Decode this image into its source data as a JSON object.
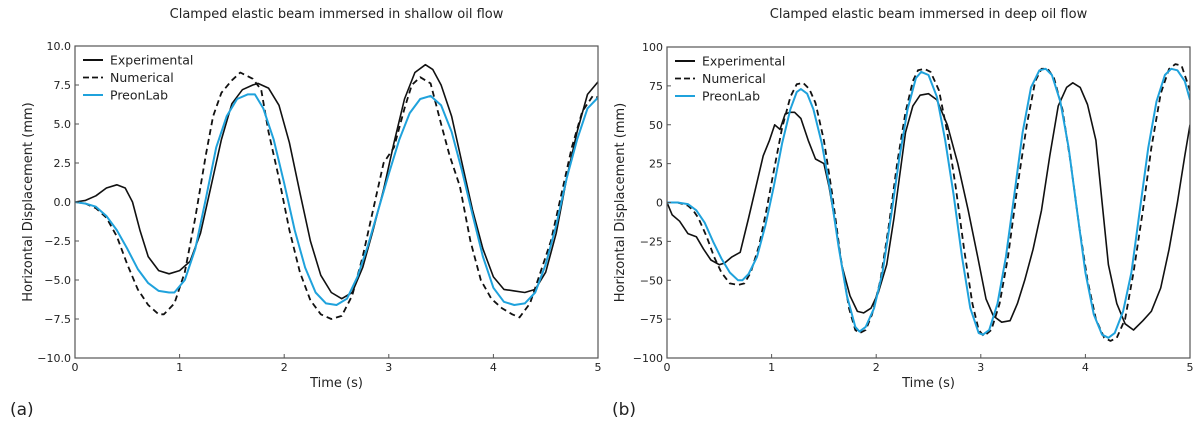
{
  "chart_data": [
    {
      "type": "line",
      "panel_label": "(a)",
      "title": "Clamped elastic beam immersed in shallow oil flow",
      "xlabel": "Time (s)",
      "ylabel": "Horizontal Displacement (mm)",
      "xlim": [
        0,
        5
      ],
      "ylim": [
        -10,
        10
      ],
      "xticks": [
        "0",
        "1",
        "2",
        "3",
        "4",
        "5"
      ],
      "yticks": [
        "10.0",
        "7.5",
        "5.0",
        "2.5",
        "0.0",
        "−2.5",
        "−5.0",
        "−7.5",
        "−10.0"
      ],
      "ytick_values": [
        10,
        7.5,
        5,
        2.5,
        0,
        -2.5,
        -5,
        -7.5,
        -10
      ],
      "xtick_values": [
        0,
        1,
        2,
        3,
        4,
        5
      ],
      "grid": false,
      "legend_position": "top-left",
      "series": [
        {
          "name": "Experimental",
          "color": "#111111",
          "style": "solid",
          "x": [
            0,
            0.1,
            0.2,
            0.3,
            0.4,
            0.48,
            0.55,
            0.62,
            0.7,
            0.8,
            0.9,
            1.0,
            1.1,
            1.2,
            1.3,
            1.4,
            1.5,
            1.6,
            1.7,
            1.75,
            1.85,
            1.95,
            2.05,
            2.15,
            2.25,
            2.35,
            2.45,
            2.55,
            2.65,
            2.75,
            2.85,
            2.95,
            3.05,
            3.15,
            3.25,
            3.35,
            3.42,
            3.5,
            3.6,
            3.7,
            3.8,
            3.9,
            4.0,
            4.1,
            4.2,
            4.3,
            4.4,
            4.5,
            4.6,
            4.7,
            4.8,
            4.9,
            5.0
          ],
          "y": [
            0,
            0.1,
            0.4,
            0.9,
            1.1,
            0.9,
            0.0,
            -1.8,
            -3.5,
            -4.4,
            -4.6,
            -4.4,
            -3.8,
            -2.0,
            1.0,
            4.0,
            6.3,
            7.2,
            7.5,
            7.6,
            7.3,
            6.2,
            3.8,
            0.6,
            -2.5,
            -4.7,
            -5.8,
            -6.2,
            -5.8,
            -4.2,
            -1.8,
            0.8,
            3.8,
            6.6,
            8.3,
            8.8,
            8.5,
            7.5,
            5.5,
            2.5,
            -0.5,
            -3.0,
            -4.8,
            -5.6,
            -5.7,
            -5.8,
            -5.6,
            -4.5,
            -2.0,
            1.5,
            4.5,
            6.9,
            7.7
          ]
        },
        {
          "name": "Numerical",
          "color": "#111111",
          "style": "dashed",
          "x": [
            0,
            0.1,
            0.2,
            0.3,
            0.4,
            0.5,
            0.6,
            0.7,
            0.8,
            0.85,
            0.95,
            1.05,
            1.15,
            1.25,
            1.32,
            1.4,
            1.5,
            1.58,
            1.7,
            1.78,
            1.85,
            1.95,
            2.05,
            2.15,
            2.25,
            2.35,
            2.45,
            2.55,
            2.65,
            2.75,
            2.85,
            2.95,
            3.05,
            3.15,
            3.22,
            3.3,
            3.4,
            3.5,
            3.58,
            3.68,
            3.78,
            3.88,
            3.98,
            4.08,
            4.18,
            4.25,
            4.35,
            4.45,
            4.55,
            4.65,
            4.75,
            4.85,
            4.95,
            5.0
          ],
          "y": [
            0,
            -0.1,
            -0.4,
            -1.0,
            -2.2,
            -4.0,
            -5.6,
            -6.6,
            -7.2,
            -7.2,
            -6.5,
            -4.5,
            -1.0,
            3.0,
            5.5,
            7.0,
            7.8,
            8.3,
            7.9,
            7.2,
            4.5,
            1.5,
            -1.8,
            -4.5,
            -6.3,
            -7.2,
            -7.5,
            -7.3,
            -6.0,
            -3.5,
            -0.5,
            2.5,
            3.5,
            6.0,
            7.5,
            8.0,
            7.6,
            5.0,
            3.0,
            1.0,
            -2.5,
            -5.0,
            -6.2,
            -6.8,
            -7.2,
            -7.4,
            -6.5,
            -4.5,
            -2.5,
            0.5,
            3.5,
            5.8,
            6.8,
            6.7
          ]
        },
        {
          "name": "PreonLab",
          "color": "#1fa2dc",
          "style": "solid",
          "x": [
            0,
            0.1,
            0.2,
            0.3,
            0.4,
            0.5,
            0.6,
            0.7,
            0.8,
            0.9,
            0.95,
            1.05,
            1.15,
            1.25,
            1.35,
            1.45,
            1.55,
            1.65,
            1.72,
            1.8,
            1.9,
            2.0,
            2.1,
            2.2,
            2.3,
            2.4,
            2.5,
            2.6,
            2.7,
            2.8,
            2.9,
            3.0,
            3.1,
            3.2,
            3.3,
            3.4,
            3.5,
            3.6,
            3.7,
            3.8,
            3.9,
            4.0,
            4.1,
            4.2,
            4.3,
            4.4,
            4.5,
            4.6,
            4.7,
            4.8,
            4.9,
            5.0
          ],
          "y": [
            0,
            -0.1,
            -0.3,
            -0.9,
            -1.8,
            -3.0,
            -4.3,
            -5.2,
            -5.7,
            -5.8,
            -5.8,
            -5.0,
            -3.0,
            0.2,
            3.5,
            5.5,
            6.6,
            6.9,
            6.9,
            6.0,
            4.0,
            1.2,
            -1.8,
            -4.2,
            -5.8,
            -6.5,
            -6.6,
            -6.2,
            -4.8,
            -2.8,
            -0.5,
            1.8,
            4.0,
            5.7,
            6.6,
            6.8,
            6.2,
            4.5,
            2.0,
            -0.8,
            -3.5,
            -5.5,
            -6.4,
            -6.6,
            -6.5,
            -5.8,
            -4.0,
            -1.5,
            1.5,
            4.0,
            6.0,
            6.7
          ]
        }
      ]
    },
    {
      "type": "line",
      "panel_label": "(b)",
      "title": "Clamped elastic beam immersed in deep oil flow",
      "xlabel": "Time (s)",
      "ylabel": "Horizontal Displacement (mm)",
      "xlim": [
        0,
        5
      ],
      "ylim": [
        -100,
        100
      ],
      "xticks": [
        "0",
        "1",
        "2",
        "3",
        "4",
        "5"
      ],
      "yticks": [
        "100",
        "75",
        "50",
        "25",
        "0",
        "−25",
        "−50",
        "−75",
        "−100"
      ],
      "ytick_values": [
        100,
        75,
        50,
        25,
        0,
        -25,
        -50,
        -75,
        -100
      ],
      "xtick_values": [
        0,
        1,
        2,
        3,
        4,
        5
      ],
      "grid": false,
      "legend_position": "top-left",
      "series": [
        {
          "name": "Experimental",
          "color": "#111111",
          "style": "solid",
          "x": [
            0,
            0.05,
            0.12,
            0.2,
            0.28,
            0.35,
            0.42,
            0.5,
            0.55,
            0.62,
            0.7,
            0.78,
            0.85,
            0.92,
            0.98,
            1.03,
            1.08,
            1.13,
            1.18,
            1.22,
            1.28,
            1.35,
            1.42,
            1.5,
            1.55,
            1.6,
            1.67,
            1.75,
            1.82,
            1.88,
            1.95,
            2.02,
            2.1,
            2.17,
            2.22,
            2.28,
            2.35,
            2.42,
            2.5,
            2.58,
            2.68,
            2.78,
            2.88,
            2.97,
            3.05,
            3.12,
            3.2,
            3.28,
            3.35,
            3.42,
            3.5,
            3.58,
            3.66,
            3.74,
            3.82,
            3.88,
            3.95,
            4.02,
            4.1,
            4.16,
            4.22,
            4.3,
            4.38,
            4.46,
            4.55,
            4.63,
            4.72,
            4.8,
            4.88,
            4.95,
            5.0
          ],
          "y": [
            0,
            -8,
            -12,
            -20,
            -22,
            -30,
            -37,
            -40,
            -39,
            -35,
            -32,
            -10,
            10,
            30,
            40,
            50,
            47,
            57,
            58,
            58,
            54,
            40,
            28,
            25,
            10,
            -10,
            -40,
            -60,
            -70,
            -71,
            -68,
            -58,
            -40,
            -10,
            15,
            45,
            62,
            69,
            70,
            66,
            50,
            25,
            -5,
            -35,
            -62,
            -73,
            -77,
            -76,
            -65,
            -50,
            -30,
            -5,
            30,
            62,
            74,
            77,
            74,
            63,
            40,
            0,
            -40,
            -65,
            -78,
            -82,
            -76,
            -70,
            -55,
            -30,
            0,
            30,
            50
          ]
        },
        {
          "name": "Numerical",
          "color": "#111111",
          "style": "dashed",
          "x": [
            0,
            0.1,
            0.2,
            0.25,
            0.3,
            0.38,
            0.45,
            0.52,
            0.6,
            0.68,
            0.74,
            0.8,
            0.88,
            0.95,
            1.02,
            1.1,
            1.18,
            1.24,
            1.3,
            1.36,
            1.42,
            1.5,
            1.58,
            1.66,
            1.74,
            1.8,
            1.84,
            1.9,
            1.96,
            2.04,
            2.12,
            2.2,
            2.28,
            2.35,
            2.4,
            2.46,
            2.52,
            2.6,
            2.68,
            2.76,
            2.84,
            2.92,
            2.98,
            3.03,
            3.1,
            3.18,
            3.26,
            3.35,
            3.44,
            3.52,
            3.58,
            3.64,
            3.7,
            3.78,
            3.86,
            3.94,
            4.02,
            4.1,
            4.18,
            4.24,
            4.3,
            4.38,
            4.46,
            4.55,
            4.63,
            4.72,
            4.8,
            4.86,
            4.92,
            5.0
          ],
          "y": [
            0,
            0,
            -2,
            -5,
            -10,
            -22,
            -35,
            -45,
            -52,
            -53,
            -52,
            -45,
            -28,
            -5,
            20,
            48,
            68,
            76,
            77,
            73,
            64,
            40,
            5,
            -35,
            -68,
            -82,
            -84,
            -82,
            -72,
            -50,
            -15,
            25,
            58,
            78,
            85,
            86,
            84,
            72,
            45,
            10,
            -30,
            -65,
            -82,
            -86,
            -82,
            -65,
            -35,
            10,
            50,
            78,
            86,
            86,
            80,
            60,
            25,
            -15,
            -50,
            -75,
            -87,
            -89,
            -87,
            -75,
            -45,
            -5,
            35,
            70,
            86,
            89,
            88,
            72
          ]
        },
        {
          "name": "PreonLab",
          "color": "#1fa2dc",
          "style": "solid",
          "x": [
            0,
            0.1,
            0.2,
            0.28,
            0.36,
            0.44,
            0.52,
            0.6,
            0.68,
            0.72,
            0.78,
            0.86,
            0.94,
            1.02,
            1.1,
            1.18,
            1.24,
            1.28,
            1.34,
            1.4,
            1.48,
            1.56,
            1.64,
            1.72,
            1.8,
            1.84,
            1.9,
            1.98,
            2.06,
            2.14,
            2.22,
            2.3,
            2.38,
            2.43,
            2.5,
            2.58,
            2.66,
            2.74,
            2.82,
            2.9,
            2.98,
            3.02,
            3.08,
            3.16,
            3.24,
            3.32,
            3.4,
            3.48,
            3.56,
            3.62,
            3.68,
            3.76,
            3.84,
            3.92,
            4.0,
            4.08,
            4.16,
            4.22,
            4.28,
            4.36,
            4.44,
            4.52,
            4.6,
            4.68,
            4.76,
            4.82,
            4.88,
            4.95,
            5.0
          ],
          "y": [
            0,
            0,
            -1,
            -5,
            -13,
            -25,
            -36,
            -45,
            -50,
            -50,
            -46,
            -35,
            -15,
            10,
            38,
            60,
            71,
            73,
            70,
            60,
            38,
            8,
            -28,
            -60,
            -80,
            -83,
            -80,
            -68,
            -45,
            -10,
            28,
            60,
            80,
            84,
            82,
            68,
            40,
            5,
            -35,
            -68,
            -84,
            -85,
            -82,
            -65,
            -35,
            5,
            45,
            74,
            85,
            86,
            82,
            65,
            35,
            -5,
            -45,
            -72,
            -85,
            -87,
            -84,
            -70,
            -45,
            -5,
            35,
            65,
            82,
            86,
            85,
            78,
            66
          ]
        }
      ]
    }
  ]
}
